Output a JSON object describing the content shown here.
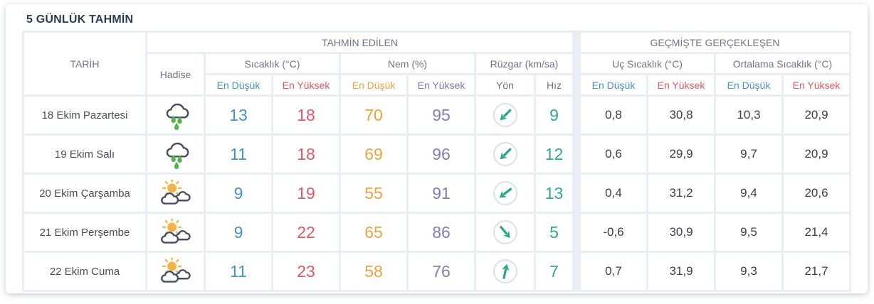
{
  "title": "5 GÜNLÜK TAHMİN",
  "table": {
    "date_header": "TARİH",
    "event_header": "Hadise",
    "groups": [
      "TAHMİN EDİLEN",
      "GEÇMİŞTE GERÇEKLEŞEN"
    ],
    "categories": [
      "Sıcaklık (°C)",
      "Nem (%)",
      "Rüzgar (km/sa)",
      "Uç Sıcaklık (°C)",
      "Ortalama Sıcaklık (°C)"
    ],
    "sub_headers": {
      "lowest": "En Düşük",
      "highest": "En Yüksek",
      "direction": "Yön",
      "speed": "Hız"
    },
    "rows": [
      {
        "date": "18 Ekim Pazartesi",
        "icon": "rain-showers",
        "temp_min": "13",
        "temp_max": "18",
        "humidity_min": "70",
        "humidity_max": "95",
        "wind_direction_deg": 225,
        "wind_speed": "9",
        "extreme_min": "0,8",
        "extreme_max": "30,8",
        "avg_min": "10,3",
        "avg_max": "20,9"
      },
      {
        "date": "19 Ekim Salı",
        "icon": "rain-showers",
        "temp_min": "11",
        "temp_max": "18",
        "humidity_min": "69",
        "humidity_max": "96",
        "wind_direction_deg": 225,
        "wind_speed": "12",
        "extreme_min": "0,6",
        "extreme_max": "29,9",
        "avg_min": "9,7",
        "avg_max": "20,9"
      },
      {
        "date": "20 Ekim Çarşamba",
        "icon": "partly-cloudy",
        "temp_min": "9",
        "temp_max": "19",
        "humidity_min": "55",
        "humidity_max": "91",
        "wind_direction_deg": 232,
        "wind_speed": "13",
        "extreme_min": "0,4",
        "extreme_max": "31,2",
        "avg_min": "9,4",
        "avg_max": "20,6"
      },
      {
        "date": "21 Ekim Perşembe",
        "icon": "partly-cloudy",
        "temp_min": "9",
        "temp_max": "22",
        "humidity_min": "65",
        "humidity_max": "86",
        "wind_direction_deg": 140,
        "wind_speed": "5",
        "extreme_min": "-0,6",
        "extreme_max": "30,9",
        "avg_min": "9,5",
        "avg_max": "21,4"
      },
      {
        "date": "22 Ekim Cuma",
        "icon": "partly-cloudy",
        "temp_min": "11",
        "temp_max": "23",
        "humidity_min": "58",
        "humidity_max": "76",
        "wind_direction_deg": 12,
        "wind_speed": "7",
        "extreme_min": "0,7",
        "extreme_max": "31,9",
        "avg_min": "9,3",
        "avg_max": "21,7"
      }
    ]
  },
  "colors": {
    "temp_min": "#4494bd",
    "temp_max": "#e15864",
    "humidity_min": "#e9a43e",
    "humidity_max": "#837cbb",
    "wind_speed": "#2fa98c",
    "wind_arrow": "#2aa88c",
    "header_min": "#4a92c0",
    "header_max": "#e15864",
    "header_hum_min": "#e9a43e",
    "header_hum_max": "#7d76b8",
    "header_gray": "#6d7585",
    "historical_value": "#3b3f48",
    "title_text": "#2c3b53",
    "grid_line": "#e9eef4",
    "sun": "#f5b34a",
    "cloud_outline": "#474f63",
    "rain_drop": "#55b44e",
    "wind_circle": "#dae1e8"
  }
}
